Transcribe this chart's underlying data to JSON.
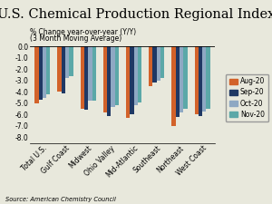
{
  "title": "U.S. Chemical Production Regional Index",
  "ylabel_line1": "% Change year-over-year (Y/Y)",
  "ylabel_line2": "(3 Month Moving Average)",
  "source": "Source: American Chemistry Council",
  "categories": [
    "Total U.S.",
    "Gulf Coast",
    "Midwest",
    "Ohio Valley",
    "Mid-Atlantic",
    "Southeast",
    "Northeast",
    "West Coast"
  ],
  "series": {
    "Aug-20": [
      -5.0,
      -4.0,
      -5.5,
      -5.8,
      -6.3,
      -3.5,
      -7.0,
      -6.0
    ],
    "Sep-20": [
      -4.7,
      -4.1,
      -5.6,
      -6.1,
      -6.0,
      -3.2,
      -6.2,
      -6.1
    ],
    "Oct-20": [
      -4.5,
      -2.8,
      -4.8,
      -5.3,
      -5.2,
      -3.0,
      -5.8,
      -5.7
    ],
    "Nov-20": [
      -4.2,
      -2.6,
      -4.8,
      -5.2,
      -4.9,
      -2.8,
      -5.5,
      -5.5
    ]
  },
  "colors": {
    "Aug-20": "#D2622A",
    "Sep-20": "#1F3864",
    "Oct-20": "#8EA8C3",
    "Nov-20": "#5BA8A8"
  },
  "ylim": [
    -8.5,
    0.5
  ],
  "yticks": [
    0.0,
    -1.0,
    -2.0,
    -3.0,
    -4.0,
    -5.0,
    -6.0,
    -7.0,
    -8.0
  ],
  "background_color": "#E8E8DC",
  "title_fontsize": 10.5,
  "tick_fontsize": 5.5,
  "label_fontsize": 5.5,
  "legend_fontsize": 5.5,
  "bar_width": 0.17,
  "group_width": 1.0
}
